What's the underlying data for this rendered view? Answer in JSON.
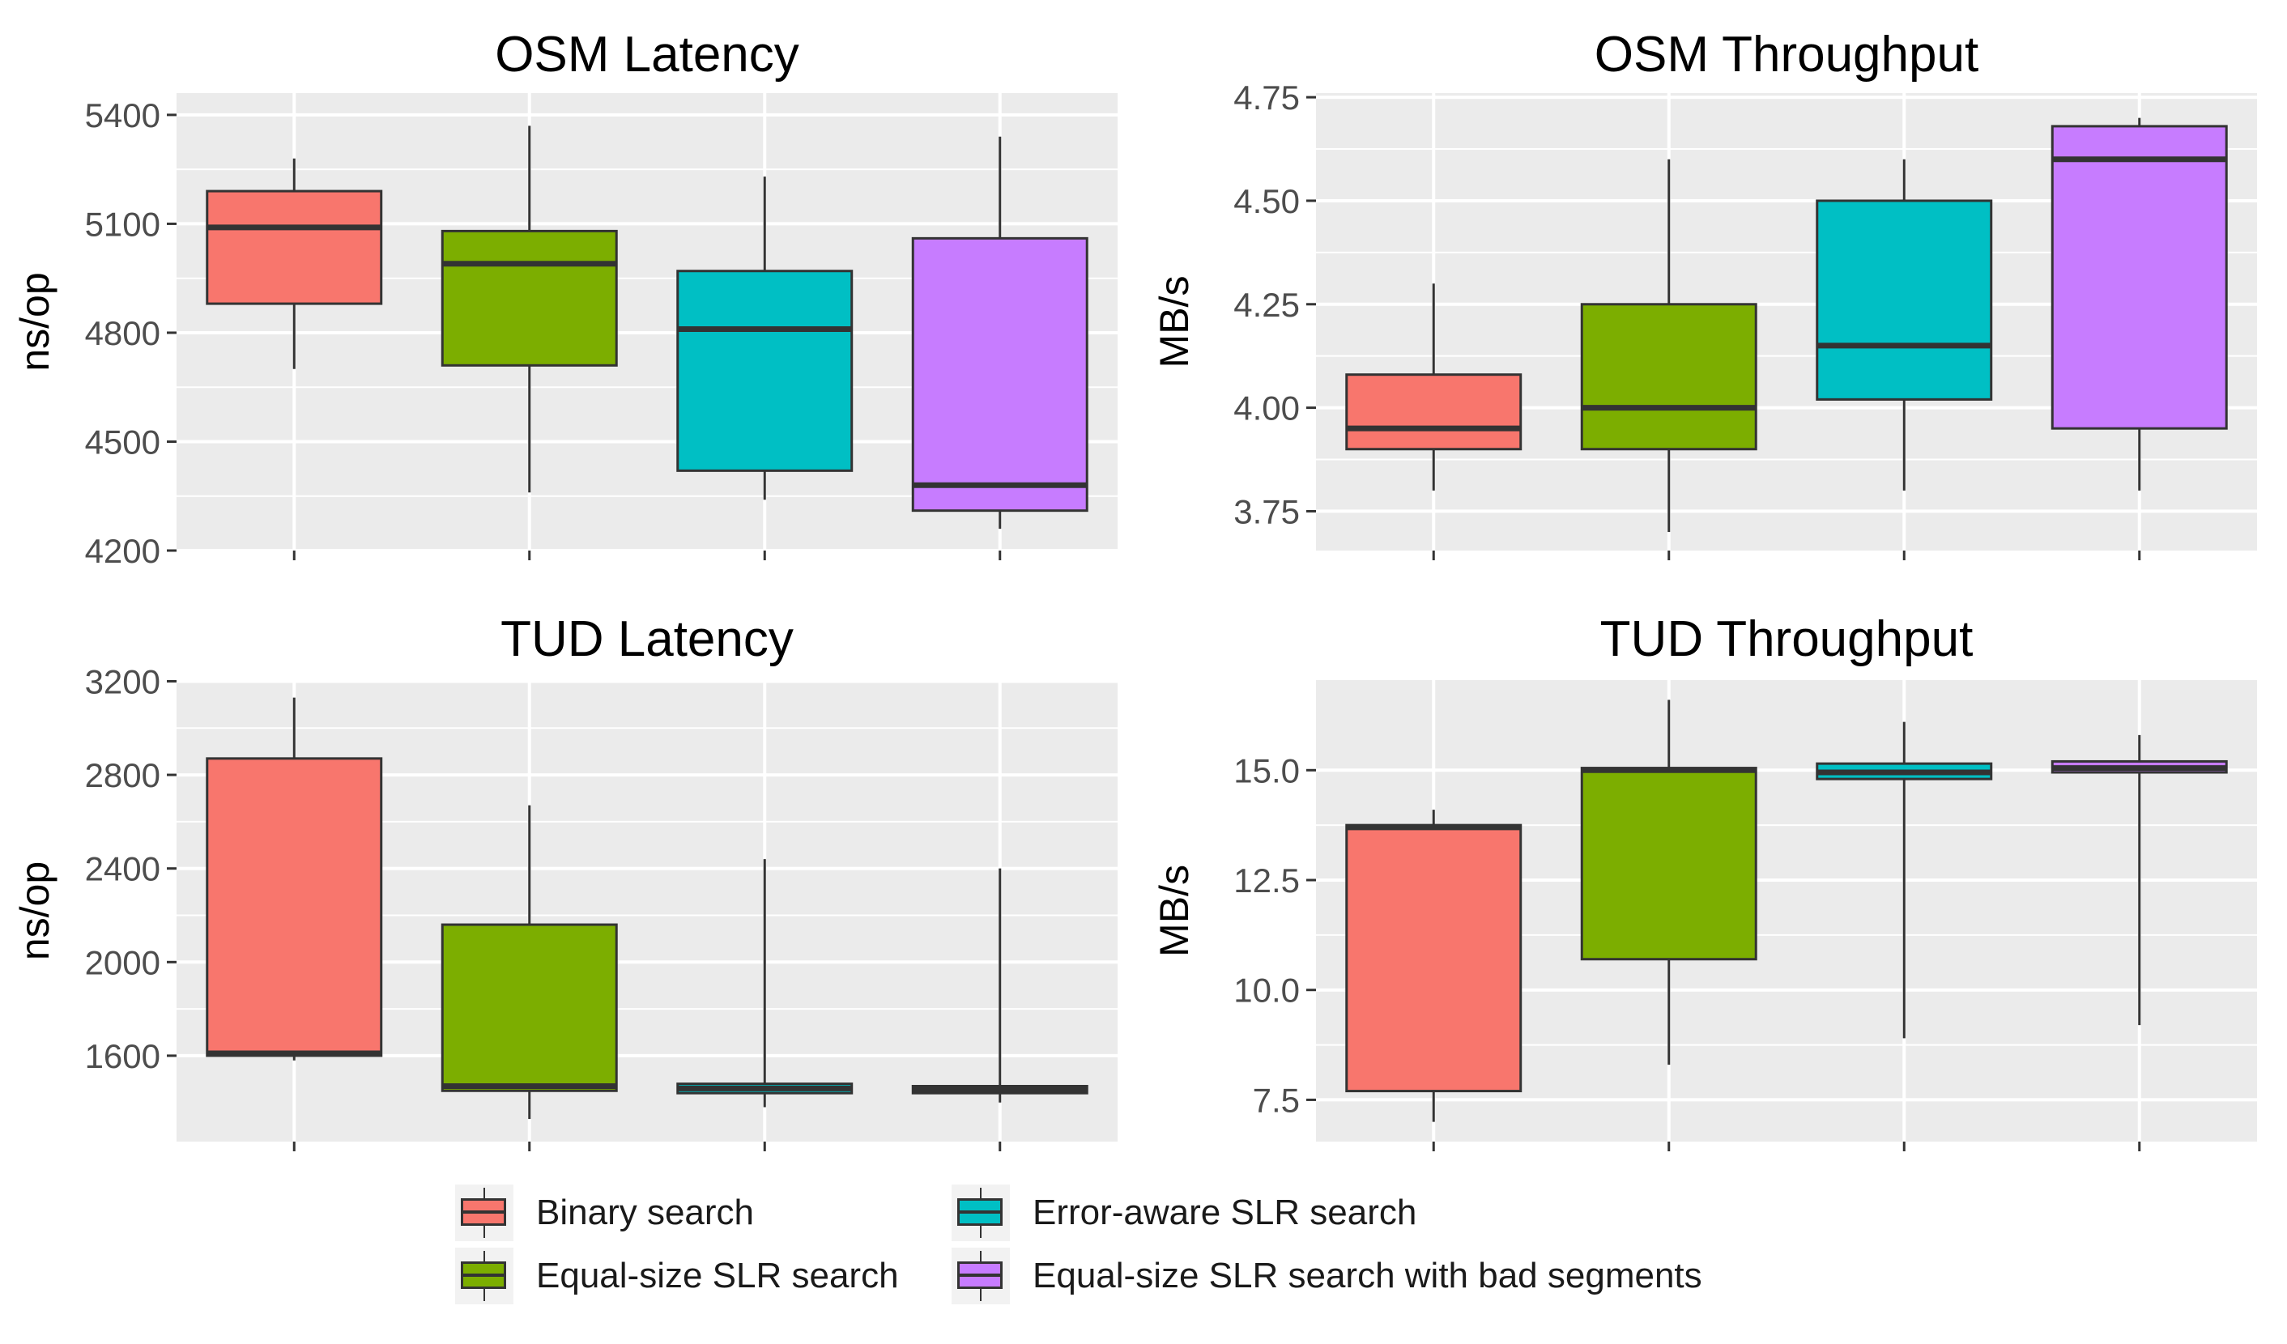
{
  "legend": [
    {
      "label": "Binary search",
      "color": "#F8766D"
    },
    {
      "label": "Equal-size SLR search",
      "color": "#7CAE00"
    },
    {
      "label": "Error-aware SLR search",
      "color": "#00BFC4"
    },
    {
      "label": "Equal-size SLR search with bad segments",
      "color": "#C77CFF"
    }
  ],
  "chart_data": [
    {
      "type": "boxplot",
      "title": "OSM Latency",
      "ylabel": "ns/op",
      "ylim": [
        4200,
        5460
      ],
      "yticks": [
        4200,
        4500,
        4800,
        5100,
        5400
      ],
      "tick_labels": [
        "4200",
        "4500",
        "4800",
        "5100",
        "5400"
      ],
      "series": [
        {
          "name": "Binary search",
          "whisker_low": 4700,
          "q1": 4880,
          "median": 5090,
          "q3": 5190,
          "whisker_high": 5280
        },
        {
          "name": "Equal-size SLR search",
          "whisker_low": 4360,
          "q1": 4710,
          "median": 4990,
          "q3": 5080,
          "whisker_high": 5370
        },
        {
          "name": "Error-aware SLR search",
          "whisker_low": 4340,
          "q1": 4420,
          "median": 4810,
          "q3": 4970,
          "whisker_high": 5230
        },
        {
          "name": "Equal-size SLR search with bad segments",
          "whisker_low": 4260,
          "q1": 4310,
          "median": 4380,
          "q3": 5060,
          "whisker_high": 5340
        }
      ]
    },
    {
      "type": "boxplot",
      "title": "OSM Throughput",
      "ylabel": "MB/s",
      "ylim": [
        3.655,
        4.76
      ],
      "yticks": [
        3.75,
        4.0,
        4.25,
        4.5,
        4.75
      ],
      "tick_labels": [
        "3.75",
        "4.00",
        "4.25",
        "4.50",
        "4.75"
      ],
      "series": [
        {
          "name": "Binary search",
          "whisker_low": 3.8,
          "q1": 3.9,
          "median": 3.95,
          "q3": 4.08,
          "whisker_high": 4.3
        },
        {
          "name": "Equal-size SLR search",
          "whisker_low": 3.7,
          "q1": 3.9,
          "median": 4.0,
          "q3": 4.25,
          "whisker_high": 4.6
        },
        {
          "name": "Error-aware SLR search",
          "whisker_low": 3.8,
          "q1": 4.02,
          "median": 4.15,
          "q3": 4.5,
          "whisker_high": 4.6
        },
        {
          "name": "Equal-size SLR search with bad segments",
          "whisker_low": 3.8,
          "q1": 3.95,
          "median": 4.6,
          "q3": 4.68,
          "whisker_high": 4.7
        }
      ]
    },
    {
      "type": "boxplot",
      "title": "TUD Latency",
      "ylabel": "ns/op",
      "ylim": [
        1233,
        3205
      ],
      "yticks": [
        1600,
        2000,
        2400,
        2800,
        3200
      ],
      "tick_labels": [
        "1600",
        "2000",
        "2400",
        "2800",
        "3200"
      ],
      "series": [
        {
          "name": "Binary search",
          "whisker_low": 1580,
          "q1": 1600,
          "median": 1610,
          "q3": 2870,
          "whisker_high": 3130
        },
        {
          "name": "Equal-size SLR search",
          "whisker_low": 1330,
          "q1": 1450,
          "median": 1470,
          "q3": 2160,
          "whisker_high": 2670
        },
        {
          "name": "Error-aware SLR search",
          "whisker_low": 1380,
          "q1": 1440,
          "median": 1460,
          "q3": 1480,
          "whisker_high": 2440
        },
        {
          "name": "Equal-size SLR search with bad segments",
          "whisker_low": 1400,
          "q1": 1440,
          "median": 1455,
          "q3": 1470,
          "whisker_high": 2400
        }
      ]
    },
    {
      "type": "boxplot",
      "title": "TUD Throughput",
      "ylabel": "MB/s",
      "ylim": [
        6.55,
        17.05
      ],
      "yticks": [
        7.5,
        10.0,
        12.5,
        15.0
      ],
      "tick_labels": [
        "7.5",
        "10.0",
        "12.5",
        "15.0"
      ],
      "series": [
        {
          "name": "Binary search",
          "whisker_low": 7.0,
          "q1": 7.7,
          "median": 13.7,
          "q3": 13.75,
          "whisker_high": 14.1
        },
        {
          "name": "Equal-size SLR search",
          "whisker_low": 8.3,
          "q1": 10.7,
          "median": 15.0,
          "q3": 15.05,
          "whisker_high": 16.6
        },
        {
          "name": "Error-aware SLR search",
          "whisker_low": 8.9,
          "q1": 14.8,
          "median": 14.95,
          "q3": 15.15,
          "whisker_high": 16.1
        },
        {
          "name": "Equal-size SLR search with bad segments",
          "whisker_low": 9.2,
          "q1": 14.95,
          "median": 15.05,
          "q3": 15.2,
          "whisker_high": 15.8
        }
      ]
    }
  ]
}
